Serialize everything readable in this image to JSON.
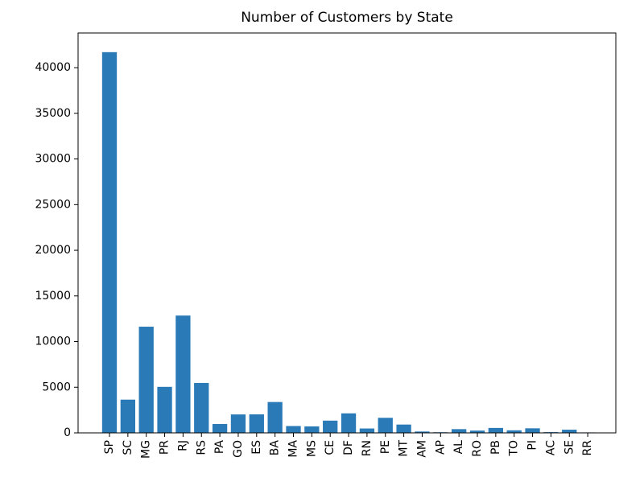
{
  "chart_data": {
    "type": "bar",
    "title": "Number of Customers by State",
    "xlabel": "",
    "ylabel": "",
    "categories": [
      "SP",
      "SC",
      "MG",
      "PR",
      "RJ",
      "RS",
      "PA",
      "GO",
      "ES",
      "BA",
      "MA",
      "MS",
      "CE",
      "DF",
      "RN",
      "PE",
      "MT",
      "AM",
      "AP",
      "AL",
      "RO",
      "PB",
      "TO",
      "PI",
      "AC",
      "SE",
      "RR"
    ],
    "values": [
      41700,
      3640,
      11630,
      5040,
      12850,
      5470,
      970,
      2020,
      2030,
      3380,
      750,
      710,
      1340,
      2140,
      480,
      1650,
      910,
      150,
      70,
      410,
      250,
      540,
      280,
      500,
      80,
      350,
      50
    ],
    "ylim": [
      0,
      43800
    ],
    "yticks": [
      0,
      5000,
      10000,
      15000,
      20000,
      25000,
      30000,
      35000,
      40000
    ],
    "grid": false,
    "bar_color": "#2a7ab8"
  }
}
